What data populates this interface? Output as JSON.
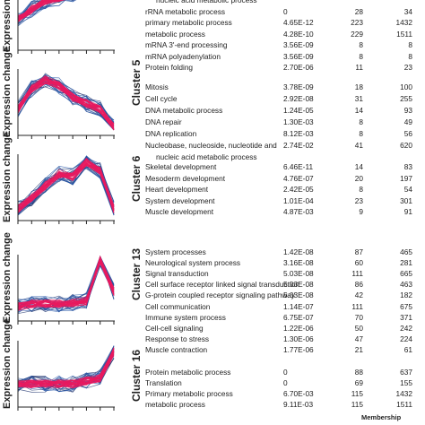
{
  "axis_label": "Expression change",
  "footer_label": "Membership",
  "colors": {
    "line_main": "#e8195f",
    "line_alt": "#2454a6",
    "line_dark": "#1a2f6b",
    "axis": "#222222"
  },
  "chart_data": [
    {
      "type": "line",
      "cluster": "",
      "x": [
        1,
        2,
        3,
        4,
        5,
        6,
        7,
        8
      ],
      "profile": [
        0.45,
        0.6,
        0.75,
        0.8,
        0.85,
        0.9,
        0.95,
        0.95
      ],
      "terms": [
        {
          "process": "nucleic acid metabolic process",
          "pvalue": "",
          "c1": "",
          "c2": ""
        },
        {
          "process": "rRNA metabolic process",
          "pvalue": "0",
          "c1": "28",
          "c2": "34"
        },
        {
          "process": "primary metabolic process",
          "pvalue": "4.65E-12",
          "c1": "223",
          "c2": "1432"
        },
        {
          "process": "metabolic process",
          "pvalue": "4.28E-10",
          "c1": "229",
          "c2": "1511"
        },
        {
          "process": "mRNA 3'-end processing",
          "pvalue": "3.56E-09",
          "c1": "8",
          "c2": "8"
        },
        {
          "process": "mRNA polyadenylation",
          "pvalue": "3.56E-09",
          "c1": "8",
          "c2": "8"
        },
        {
          "process": "Protein folding",
          "pvalue": "2.70E-06",
          "c1": "11",
          "c2": "23"
        }
      ]
    },
    {
      "type": "line",
      "cluster": "Cluster 5",
      "x": [
        1,
        2,
        3,
        4,
        5,
        6,
        7,
        8
      ],
      "profile": [
        0.35,
        0.7,
        0.85,
        0.75,
        0.55,
        0.45,
        0.35,
        0.05
      ],
      "terms": [
        {
          "process": "Mitosis",
          "pvalue": "3.78E-09",
          "c1": "18",
          "c2": "100"
        },
        {
          "process": "Cell cycle",
          "pvalue": "2.92E-08",
          "c1": "31",
          "c2": "255"
        },
        {
          "process": "DNA metabolic process",
          "pvalue": "1.24E-05",
          "c1": "14",
          "c2": "93"
        },
        {
          "process": "DNA repair",
          "pvalue": "1.30E-03",
          "c1": "8",
          "c2": "49"
        },
        {
          "process": "DNA replication",
          "pvalue": "8.12E-03",
          "c1": "8",
          "c2": "56"
        },
        {
          "process": "Nucleobase, nucleoside, nucleotide and",
          "pvalue": "2.74E-02",
          "c1": "41",
          "c2": "620"
        },
        {
          "process": "nucleic acid metabolic process",
          "pvalue": "",
          "c1": "",
          "c2": ""
        }
      ]
    },
    {
      "type": "line",
      "cluster": "Cluster 6",
      "x": [
        1,
        2,
        3,
        4,
        5,
        6,
        7,
        8
      ],
      "profile": [
        0.1,
        0.3,
        0.5,
        0.7,
        0.65,
        0.9,
        0.75,
        0.1
      ],
      "terms": [
        {
          "process": "Skeletal development",
          "pvalue": "6.46E-11",
          "c1": "14",
          "c2": "83"
        },
        {
          "process": "Mesoderm development",
          "pvalue": "4.76E-07",
          "c1": "20",
          "c2": "197"
        },
        {
          "process": "Heart development",
          "pvalue": "2.42E-05",
          "c1": "8",
          "c2": "54"
        },
        {
          "process": "System development",
          "pvalue": "1.01E-04",
          "c1": "23",
          "c2": "301"
        },
        {
          "process": "Muscle development",
          "pvalue": "4.87E-03",
          "c1": "9",
          "c2": "91"
        }
      ]
    },
    {
      "type": "line",
      "cluster": "Cluster 13",
      "x": [
        1,
        2,
        3,
        4,
        5,
        6,
        7,
        8
      ],
      "profile": [
        0.15,
        0.2,
        0.2,
        0.2,
        0.22,
        0.25,
        0.95,
        0.4
      ],
      "terms": [
        {
          "process": "System processes",
          "pvalue": "1.42E-08",
          "c1": "87",
          "c2": "465"
        },
        {
          "process": "Neurological system process",
          "pvalue": "3.16E-08",
          "c1": "60",
          "c2": "281"
        },
        {
          "process": "Signal transduction",
          "pvalue": "5.03E-08",
          "c1": "111",
          "c2": "665"
        },
        {
          "process": "Cell surface receptor linked signal transduction",
          "pvalue": "5.03E-08",
          "c1": "86",
          "c2": "463"
        },
        {
          "process": "G-protein coupled receptor signaling pathway",
          "pvalue": "5.03E-08",
          "c1": "42",
          "c2": "182"
        },
        {
          "process": "Cell communication",
          "pvalue": "1.14E-07",
          "c1": "111",
          "c2": "675"
        },
        {
          "process": "Immune system process",
          "pvalue": "6.75E-07",
          "c1": "70",
          "c2": "371"
        },
        {
          "process": "Cell-cell signaling",
          "pvalue": "1.22E-06",
          "c1": "50",
          "c2": "242"
        },
        {
          "process": "Response to stress",
          "pvalue": "1.30E-06",
          "c1": "47",
          "c2": "224"
        },
        {
          "process": "Muscle contraction",
          "pvalue": "1.77E-06",
          "c1": "21",
          "c2": "61"
        }
      ]
    },
    {
      "type": "line",
      "cluster": "Cluster 16",
      "x": [
        1,
        2,
        3,
        4,
        5,
        6,
        7,
        8
      ],
      "profile": [
        0.3,
        0.3,
        0.3,
        0.3,
        0.3,
        0.35,
        0.4,
        0.85
      ],
      "terms": [
        {
          "process": "Protein metabolic process",
          "pvalue": "0",
          "c1": "88",
          "c2": "637"
        },
        {
          "process": "Translation",
          "pvalue": "0",
          "c1": "69",
          "c2": "155"
        },
        {
          "process": "Primary metabolic process",
          "pvalue": "6.70E-03",
          "c1": "115",
          "c2": "1432"
        },
        {
          "process": "metabolic process",
          "pvalue": "9.11E-03",
          "c1": "115",
          "c2": "1511"
        }
      ]
    }
  ]
}
